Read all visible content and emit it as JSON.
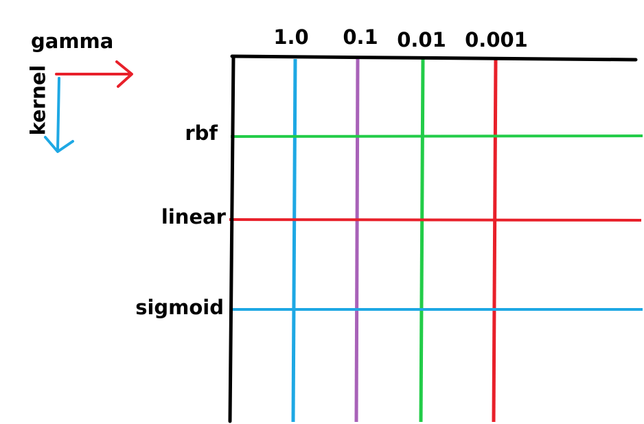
{
  "legend": {
    "horizontal_axis": "gamma",
    "vertical_axis": "kernel",
    "horizontal_arrow_color": "#e8202a",
    "vertical_arrow_color": "#1ea8e4"
  },
  "gamma_values": [
    {
      "label": "1.0",
      "color": "#1ea8e4"
    },
    {
      "label": "0.1",
      "color": "#a862b8"
    },
    {
      "label": "0.01",
      "color": "#22cc48"
    },
    {
      "label": "0.001",
      "color": "#e8202a"
    }
  ],
  "kernels": [
    {
      "label": "rbf",
      "color": "#22cc48"
    },
    {
      "label": "linear",
      "color": "#e8202a"
    },
    {
      "label": "sigmoid",
      "color": "#1ea8e4"
    }
  ],
  "axis_color": "#000000"
}
